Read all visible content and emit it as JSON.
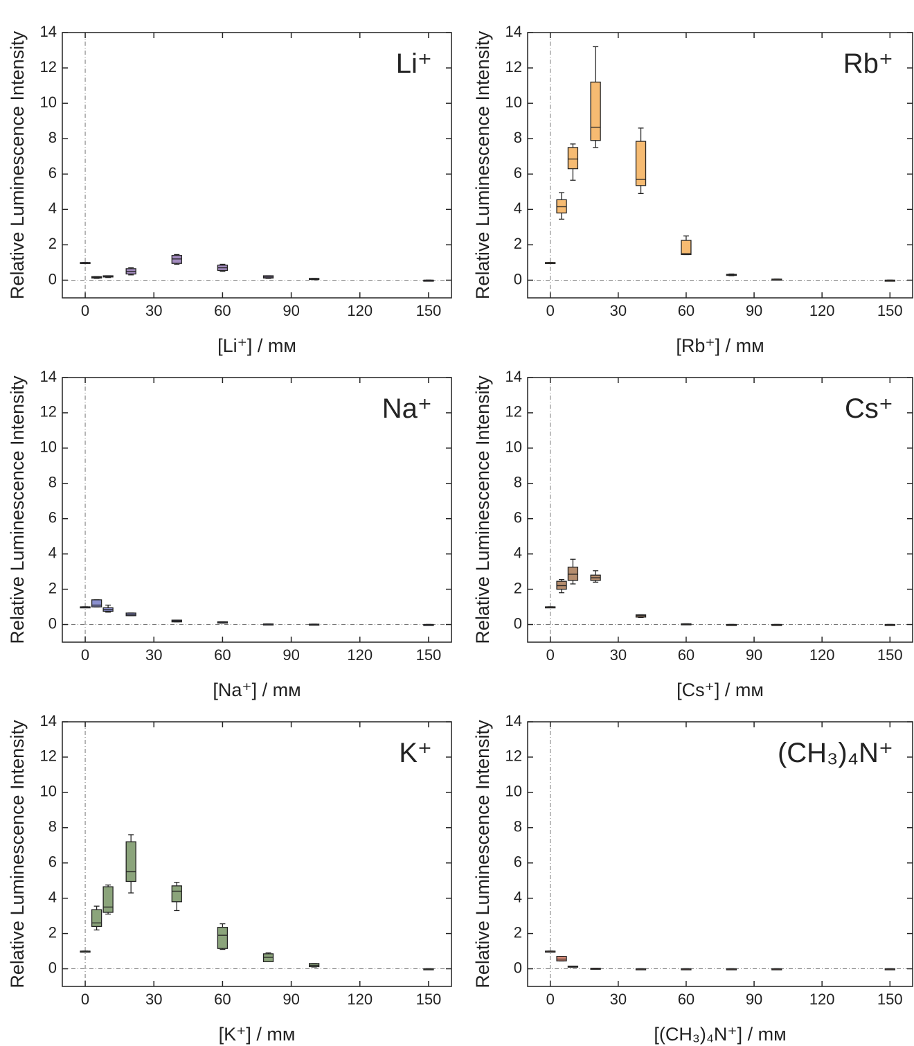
{
  "chart_data": [
    {
      "type": "box",
      "title": "Li⁺",
      "xlabel": "[Li⁺] / mᴍ",
      "ylabel": "Relative Luminescence Intensity",
      "color": "#a48cc0",
      "x": [
        0,
        5,
        10,
        20,
        40,
        60,
        80,
        100,
        150
      ],
      "min": [
        1,
        0.1,
        0.15,
        0.3,
        0.9,
        0.5,
        0.1,
        0.03,
        0
      ],
      "q1": [
        1,
        0.12,
        0.18,
        0.35,
        0.95,
        0.55,
        0.12,
        0.04,
        0
      ],
      "median": [
        1,
        0.15,
        0.2,
        0.5,
        1.2,
        0.7,
        0.18,
        0.05,
        0
      ],
      "q3": [
        1,
        0.2,
        0.25,
        0.65,
        1.4,
        0.85,
        0.25,
        0.1,
        0
      ],
      "max": [
        1,
        0.2,
        0.25,
        0.7,
        1.45,
        0.9,
        0.25,
        0.1,
        0
      ],
      "xlim": [
        -10,
        160
      ],
      "ylim": [
        -1,
        14
      ],
      "xticks": [
        0,
        30,
        60,
        90,
        120,
        150
      ],
      "yticks": [
        0,
        2,
        4,
        6,
        8,
        10,
        12,
        14
      ]
    },
    {
      "type": "box",
      "title": "Rb⁺",
      "xlabel": "[Rb⁺] / mᴍ",
      "ylabel": "Relative Luminescence Intensity",
      "color": "#f6bb72",
      "x": [
        0,
        5,
        10,
        20,
        40,
        60,
        80,
        100,
        150
      ],
      "min": [
        1,
        3.45,
        5.65,
        7.5,
        4.9,
        1.45,
        0.25,
        0.04,
        0
      ],
      "q1": [
        1,
        3.8,
        6.3,
        7.9,
        5.35,
        1.45,
        0.27,
        0.04,
        0
      ],
      "median": [
        1,
        4.15,
        6.85,
        8.65,
        5.7,
        1.5,
        0.3,
        0.05,
        0
      ],
      "q3": [
        1,
        4.55,
        7.5,
        11.2,
        7.85,
        2.25,
        0.33,
        0.06,
        0
      ],
      "max": [
        1,
        4.95,
        7.7,
        13.2,
        8.6,
        2.5,
        0.35,
        0.06,
        0
      ],
      "xlim": [
        -10,
        160
      ],
      "ylim": [
        -1,
        14
      ],
      "xticks": [
        0,
        30,
        60,
        90,
        120,
        150
      ],
      "yticks": [
        0,
        2,
        4,
        6,
        8,
        10,
        12,
        14
      ]
    },
    {
      "type": "box",
      "title": "Na⁺",
      "xlabel": "[Na⁺] / mᴍ",
      "ylabel": "Relative Luminescence Intensity",
      "color": "#8b90cf",
      "x": [
        0,
        5,
        10,
        20,
        40,
        60,
        80,
        100,
        150
      ],
      "min": [
        1,
        1.0,
        0.7,
        0.5,
        0.15,
        0.08,
        0.01,
        0.01,
        0
      ],
      "q1": [
        1,
        1.0,
        0.75,
        0.5,
        0.15,
        0.08,
        0.01,
        0.01,
        0
      ],
      "median": [
        1,
        1.1,
        0.85,
        0.55,
        0.2,
        0.1,
        0.02,
        0.01,
        0
      ],
      "q3": [
        1,
        1.4,
        0.95,
        0.65,
        0.25,
        0.15,
        0.03,
        0.02,
        0
      ],
      "max": [
        1,
        1.4,
        1.1,
        0.65,
        0.25,
        0.15,
        0.03,
        0.02,
        0
      ],
      "xlim": [
        -10,
        160
      ],
      "ylim": [
        -1,
        14
      ],
      "xticks": [
        0,
        30,
        60,
        90,
        120,
        150
      ],
      "yticks": [
        0,
        2,
        4,
        6,
        8,
        10,
        12,
        14
      ]
    },
    {
      "type": "box",
      "title": "Cs⁺",
      "xlabel": "[Cs⁺] / mᴍ",
      "ylabel": "Relative Luminescence Intensity",
      "color": "#b58d6e",
      "x": [
        0,
        5,
        10,
        20,
        40,
        60,
        80,
        100,
        150
      ],
      "min": [
        1,
        1.8,
        2.3,
        2.4,
        0.4,
        0.02,
        0,
        0,
        0
      ],
      "q1": [
        1,
        2.0,
        2.5,
        2.5,
        0.42,
        0.02,
        0,
        0,
        0
      ],
      "median": [
        1,
        2.2,
        2.85,
        2.65,
        0.5,
        0.03,
        0,
        0,
        0
      ],
      "q3": [
        1,
        2.45,
        3.25,
        2.8,
        0.55,
        0.04,
        0,
        0,
        0
      ],
      "max": [
        1,
        2.55,
        3.7,
        3.05,
        0.55,
        0.04,
        0,
        0,
        0
      ],
      "xlim": [
        -10,
        160
      ],
      "ylim": [
        -1,
        14
      ],
      "xticks": [
        0,
        30,
        60,
        90,
        120,
        150
      ],
      "yticks": [
        0,
        2,
        4,
        6,
        8,
        10,
        12,
        14
      ]
    },
    {
      "type": "box",
      "title": "K⁺",
      "xlabel": "[K⁺] / mᴍ",
      "ylabel": "Relative Luminescence Intensity",
      "color": "#8ba47b",
      "x": [
        0,
        5,
        10,
        20,
        40,
        60,
        80,
        100,
        150
      ],
      "min": [
        1,
        2.2,
        3.1,
        4.3,
        3.3,
        1.1,
        0.4,
        0.1,
        0
      ],
      "q1": [
        1,
        2.4,
        3.2,
        4.95,
        3.8,
        1.15,
        0.4,
        0.12,
        0
      ],
      "median": [
        1,
        2.6,
        3.5,
        5.5,
        4.4,
        1.9,
        0.65,
        0.2,
        0
      ],
      "q3": [
        1,
        3.35,
        4.65,
        7.2,
        4.7,
        2.35,
        0.85,
        0.3,
        0
      ],
      "max": [
        1,
        3.55,
        4.75,
        7.6,
        4.9,
        2.55,
        0.9,
        0.3,
        0
      ],
      "xlim": [
        -10,
        160
      ],
      "ylim": [
        -1,
        14
      ],
      "xticks": [
        0,
        30,
        60,
        90,
        120,
        150
      ],
      "yticks": [
        0,
        2,
        4,
        6,
        8,
        10,
        12,
        14
      ]
    },
    {
      "type": "box",
      "title": "(CH₃)₄N⁺",
      "xlabel": "[(CH₃)₄N⁺] / mᴍ",
      "ylabel": "Relative Luminescence Intensity",
      "color": "#e9957f",
      "x": [
        0,
        5,
        10,
        20,
        40,
        60,
        80,
        100,
        150
      ],
      "min": [
        1,
        0.45,
        0.1,
        0.02,
        0,
        0,
        0,
        0,
        0
      ],
      "q1": [
        1,
        0.45,
        0.1,
        0.02,
        0,
        0,
        0,
        0,
        0
      ],
      "median": [
        1,
        0.55,
        0.12,
        0.02,
        0,
        0,
        0,
        0,
        0
      ],
      "q3": [
        1,
        0.7,
        0.15,
        0.03,
        0,
        0,
        0,
        0,
        0
      ],
      "max": [
        1,
        0.7,
        0.15,
        0.03,
        0,
        0,
        0,
        0,
        0
      ],
      "xlim": [
        -10,
        160
      ],
      "ylim": [
        -1,
        14
      ],
      "xticks": [
        0,
        30,
        60,
        90,
        120,
        150
      ],
      "yticks": [
        0,
        2,
        4,
        6,
        8,
        10,
        12,
        14
      ]
    }
  ]
}
